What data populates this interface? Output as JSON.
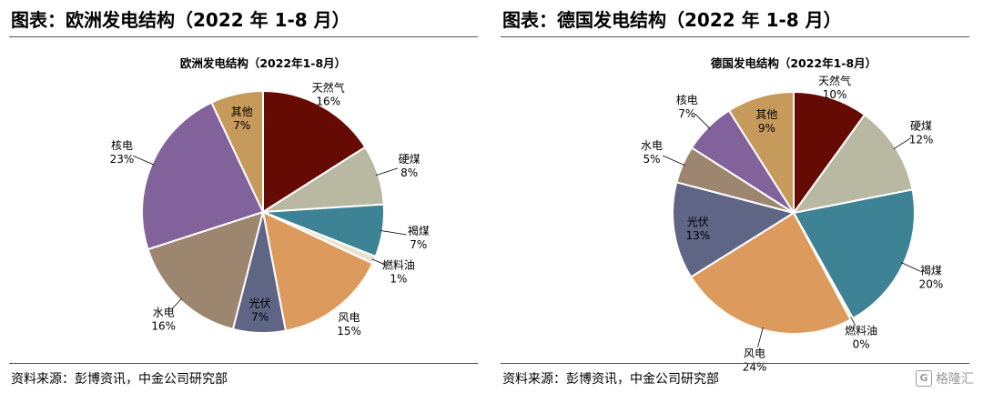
{
  "left": {
    "figure_title": "图表：欧洲发电结构（2022 年 1-8 月）",
    "source": "资料来源：彭博资讯，中金公司研究部"
  },
  "right": {
    "figure_title": "图表：德国发电结构（2022 年 1-8 月）",
    "source": "资料来源：彭博资讯，中金公司研究部"
  },
  "watermark": {
    "icon": "gelonghui-logo-icon",
    "text": "格隆汇"
  },
  "chart_data": [
    {
      "type": "pie",
      "title": "欧洲发电结构（2022年1-8月）",
      "slices": [
        {
          "label": "天然气",
          "value": 16,
          "display": "16%",
          "color": "#660a04"
        },
        {
          "label": "硬煤",
          "value": 8,
          "display": "8%",
          "color": "#b9b8a2"
        },
        {
          "label": "褐煤",
          "value": 7,
          "display": "7%",
          "color": "#3d8295"
        },
        {
          "label": "燃料油",
          "value": 1,
          "display": "1%",
          "color": "#eae2ce"
        },
        {
          "label": "风电",
          "value": 15,
          "display": "15%",
          "color": "#dd9a5d"
        },
        {
          "label": "光伏",
          "value": 7,
          "display": "7%",
          "color": "#5e6585"
        },
        {
          "label": "水电",
          "value": 16,
          "display": "16%",
          "color": "#9c8670"
        },
        {
          "label": "核电",
          "value": 23,
          "display": "23%",
          "color": "#82629b"
        },
        {
          "label": "其他",
          "value": 7,
          "display": "7%",
          "color": "#c59a5a"
        }
      ]
    },
    {
      "type": "pie",
      "title": "德国发电结构（2022年1-8月）",
      "slices": [
        {
          "label": "天然气",
          "value": 10,
          "display": "10%",
          "color": "#660a04"
        },
        {
          "label": "硬煤",
          "value": 12,
          "display": "12%",
          "color": "#b9b8a2"
        },
        {
          "label": "褐煤",
          "value": 20,
          "display": "20%",
          "color": "#3d8295"
        },
        {
          "label": "燃料油",
          "value": 0,
          "display": "0%",
          "color": "#eae2ce"
        },
        {
          "label": "风电",
          "value": 24,
          "display": "24%",
          "color": "#dd9a5d"
        },
        {
          "label": "光伏",
          "value": 13,
          "display": "13%",
          "color": "#5e6585"
        },
        {
          "label": "水电",
          "value": 5,
          "display": "5%",
          "color": "#9c8670"
        },
        {
          "label": "核电",
          "value": 7,
          "display": "7%",
          "color": "#82629b"
        },
        {
          "label": "其他",
          "value": 9,
          "display": "9%",
          "color": "#c59a5a"
        }
      ]
    }
  ]
}
